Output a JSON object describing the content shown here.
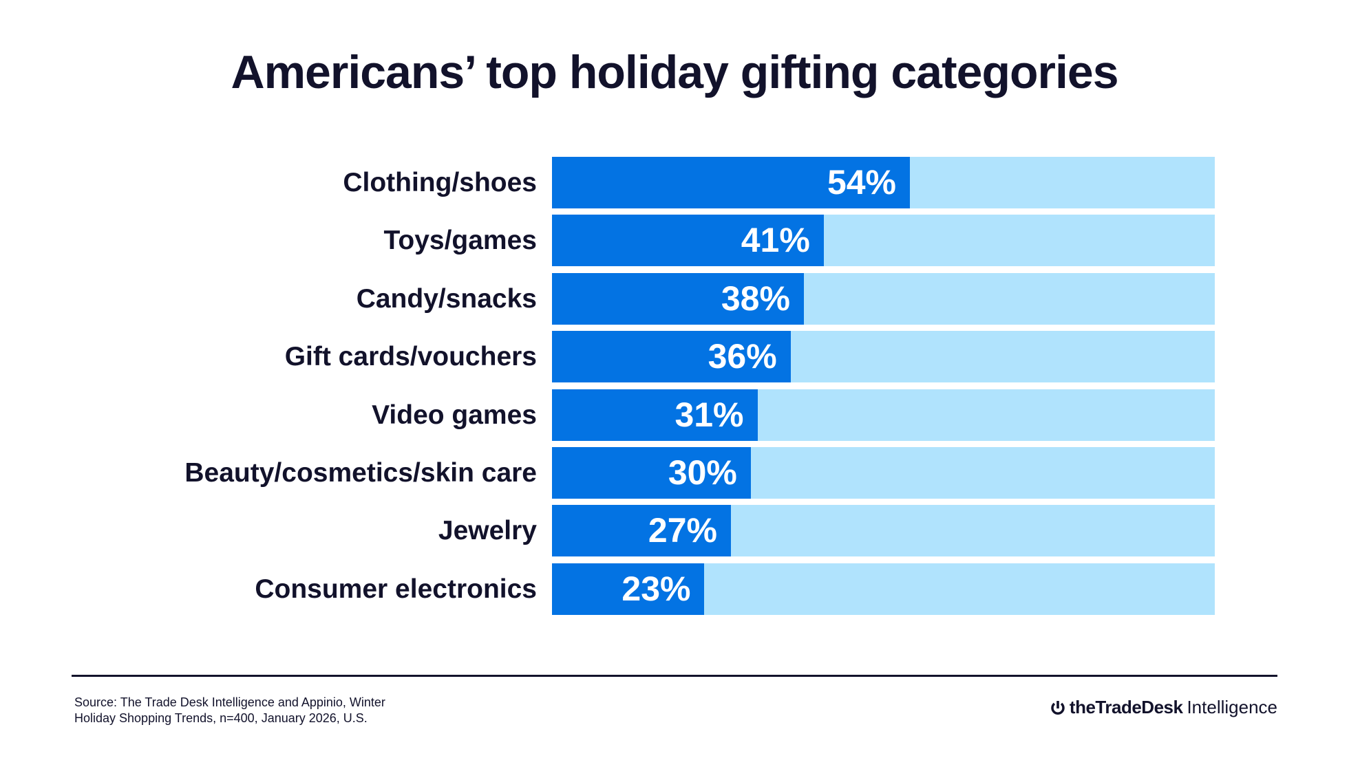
{
  "chart_data": {
    "type": "bar",
    "orientation": "horizontal",
    "title": "Americans’ top holiday gifting categories",
    "categories": [
      "Clothing/shoes",
      "Toys/games",
      "Candy/snacks",
      "Gift cards/vouchers",
      "Video games",
      "Beauty/cosmetics/skin care",
      "Jewelry",
      "Consumer electronics"
    ],
    "values": [
      54,
      41,
      38,
      36,
      31,
      30,
      27,
      23
    ],
    "value_labels": [
      "54%",
      "41%",
      "38%",
      "36%",
      "31%",
      "30%",
      "27%",
      "23%"
    ],
    "xlim": [
      0,
      100
    ],
    "grid": false,
    "colors": {
      "bar": "#0373e3",
      "track": "#b0e3fd",
      "text": "#12122b"
    }
  },
  "footer": {
    "source_line1": "Source: The Trade Desk Intelligence and Appinio, Winter",
    "source_line2": "Holiday Shopping Trends, n=400, January 2026, U.S.",
    "logo_brand": "theTradeDesk",
    "logo_suffix": "Intelligence"
  }
}
